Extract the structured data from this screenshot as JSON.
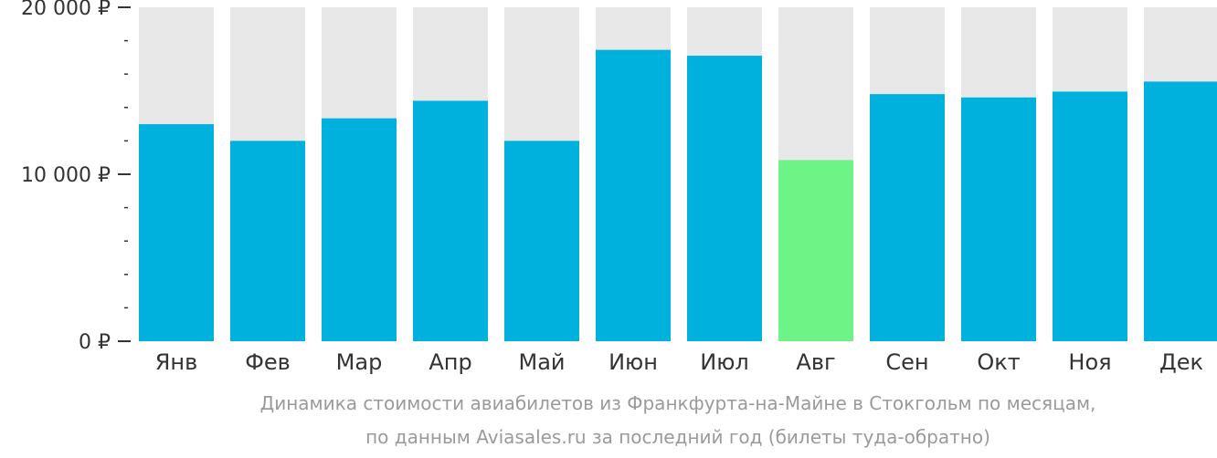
{
  "chart_data": {
    "type": "bar",
    "categories": [
      "Янв",
      "Фев",
      "Мар",
      "Апр",
      "Май",
      "Июн",
      "Июл",
      "Авг",
      "Сен",
      "Окт",
      "Ноя",
      "Дек"
    ],
    "values": [
      13000,
      12000,
      13350,
      14400,
      12000,
      17450,
      17100,
      10850,
      14800,
      14600,
      14950,
      15550
    ],
    "highlight_index": 7,
    "ylim": [
      0,
      20000
    ],
    "y_ticks": [
      {
        "value": 0,
        "label": "0 ₽"
      },
      {
        "value": 10000,
        "label": "10 000 ₽"
      },
      {
        "value": 20000,
        "label": "20 000 ₽"
      }
    ],
    "minor_tick_step": 2000,
    "colors": {
      "bar": "#00b0dd",
      "highlight": "#6ef387",
      "background_bar": "#e8e8e8",
      "axis": "#333333"
    },
    "title": "Динамика стоимости авиабилетов из Франкфурта-на-Майне в Стокгольм по месяцам,",
    "subtitle": "по данным Aviasales.ru за последний год (билеты туда-обратно)"
  }
}
